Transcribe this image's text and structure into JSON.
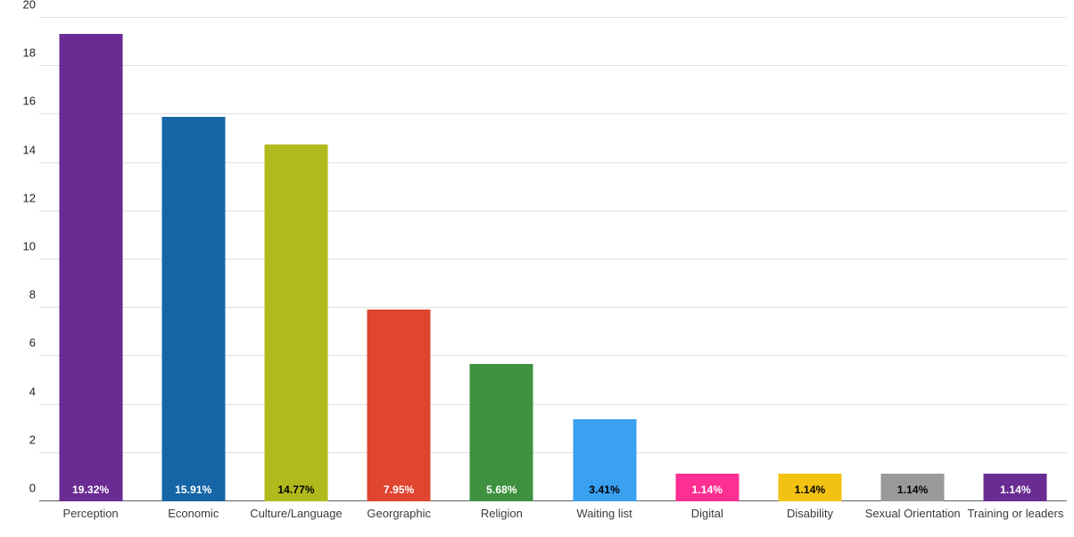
{
  "chart_data": {
    "type": "bar",
    "title": "",
    "xlabel": "",
    "ylabel": "",
    "categories": [
      "Perception",
      "Economic",
      "Culture/Language",
      "Georgraphic",
      "Religion",
      "Waiting list",
      "Digital",
      "Disability",
      "Sexual Orientation",
      "Training or leaders"
    ],
    "values": [
      19.32,
      15.91,
      14.77,
      7.95,
      5.68,
      3.41,
      1.14,
      1.14,
      1.14,
      1.14
    ],
    "value_labels": [
      "19.32%",
      "15.91%",
      "14.77%",
      "7.95%",
      "5.68%",
      "3.41%",
      "1.14%",
      "1.14%",
      "1.14%",
      "1.14%"
    ],
    "bar_colors": [
      "#6a2c93",
      "#1665a6",
      "#b1ba1d",
      "#e0452f",
      "#3f9140",
      "#3aa0f0",
      "#fd2f92",
      "#f2c213",
      "#9a9a9a",
      "#6a2c93"
    ],
    "value_label_colors": [
      "#ffffff",
      "#ffffff",
      "#000000",
      "#ffffff",
      "#ffffff",
      "#000000",
      "#ffffff",
      "#000000",
      "#000000",
      "#ffffff"
    ],
    "ylim": [
      0,
      20
    ],
    "yticks": [
      0,
      2,
      4,
      6,
      8,
      10,
      12,
      14,
      16,
      18,
      20
    ],
    "ytick_labels": [
      "0",
      "2",
      "4",
      "6",
      "8",
      "10",
      "12",
      "14",
      "16",
      "18",
      "20"
    ],
    "grid": true,
    "grid_color": "#e0e0e0",
    "axis_color": "#616161",
    "legend_position": "none",
    "background_color": "#ffffff"
  }
}
